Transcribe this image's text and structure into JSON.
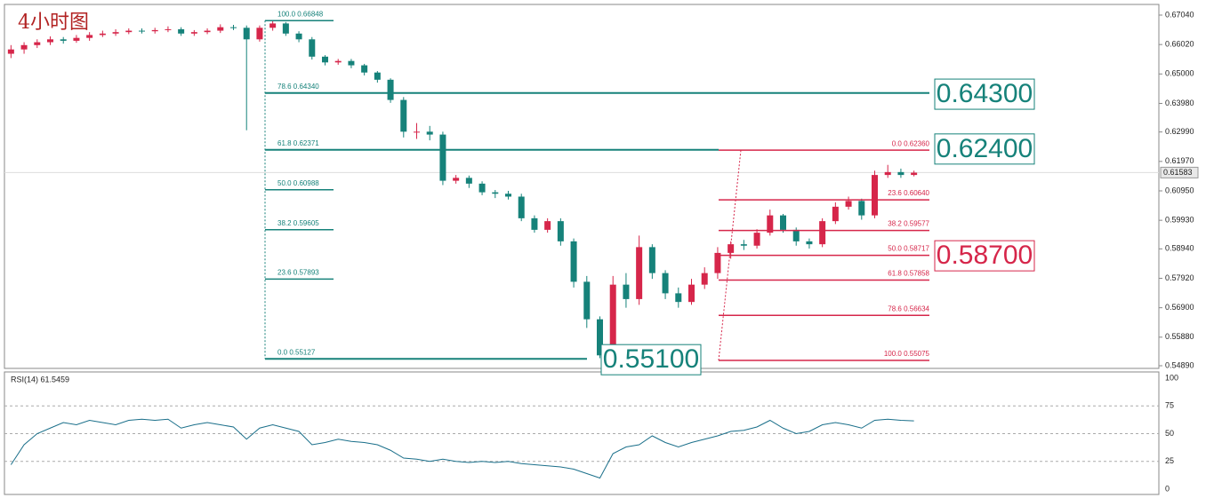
{
  "chart_data": [
    {
      "type": "candlestick",
      "title": "4小时图",
      "open": [
        0.657,
        0.6585,
        0.66,
        0.661,
        0.662,
        0.6615,
        0.6625,
        0.6635,
        0.664,
        0.6645,
        0.665,
        0.6648,
        0.6652,
        0.6655,
        0.664,
        0.6645,
        0.665,
        0.6662,
        0.666,
        0.662,
        0.666,
        0.6675,
        0.664,
        0.662,
        0.656,
        0.654,
        0.6545,
        0.653,
        0.6505,
        0.648,
        0.641,
        0.63,
        0.63,
        0.629,
        0.613,
        0.614,
        0.612,
        0.609,
        0.6085,
        0.6075,
        0.6,
        0.596,
        0.599,
        0.592,
        0.578,
        0.565,
        0.5525,
        0.577,
        0.572,
        0.59,
        0.581,
        0.574,
        0.571,
        0.577,
        0.581,
        0.588,
        0.591,
        0.5905,
        0.595,
        0.601,
        0.596,
        0.592,
        0.591,
        0.599,
        0.604,
        0.606,
        0.601,
        0.615,
        0.616,
        0.615
      ],
      "high": [
        0.66,
        0.661,
        0.662,
        0.663,
        0.6628,
        0.6635,
        0.6645,
        0.665,
        0.6655,
        0.6658,
        0.6658,
        0.666,
        0.6665,
        0.6662,
        0.6652,
        0.6658,
        0.6672,
        0.667,
        0.6668,
        0.6668,
        0.6685,
        0.668,
        0.6648,
        0.6628,
        0.6565,
        0.6552,
        0.6552,
        0.6535,
        0.651,
        0.6485,
        0.642,
        0.633,
        0.632,
        0.63,
        0.615,
        0.6148,
        0.6128,
        0.6098,
        0.6095,
        0.6085,
        0.601,
        0.6,
        0.6,
        0.593,
        0.58,
        0.566,
        0.58,
        0.581,
        0.594,
        0.591,
        0.582,
        0.576,
        0.579,
        0.583,
        0.59,
        0.592,
        0.5925,
        0.5962,
        0.603,
        0.6015,
        0.5968,
        0.593,
        0.6,
        0.6055,
        0.6075,
        0.6068,
        0.6165,
        0.6185,
        0.6172,
        0.6165
      ],
      "low": [
        0.6555,
        0.657,
        0.659,
        0.66,
        0.6605,
        0.6608,
        0.6615,
        0.6628,
        0.6632,
        0.6638,
        0.664,
        0.664,
        0.6645,
        0.6632,
        0.6632,
        0.6638,
        0.6642,
        0.6652,
        0.6305,
        0.6612,
        0.665,
        0.6632,
        0.661,
        0.655,
        0.653,
        0.6532,
        0.652,
        0.6495,
        0.647,
        0.64,
        0.628,
        0.6275,
        0.627,
        0.6115,
        0.612,
        0.6105,
        0.608,
        0.607,
        0.6065,
        0.599,
        0.595,
        0.595,
        0.5905,
        0.576,
        0.562,
        0.5515,
        0.5515,
        0.569,
        0.57,
        0.579,
        0.572,
        0.569,
        0.57,
        0.5755,
        0.579,
        0.586,
        0.589,
        0.5895,
        0.594,
        0.595,
        0.5905,
        0.5895,
        0.59,
        0.598,
        0.603,
        0.5995,
        0.6,
        0.614,
        0.614,
        0.6145
      ],
      "close": [
        0.6585,
        0.66,
        0.661,
        0.662,
        0.6615,
        0.6625,
        0.6635,
        0.664,
        0.6645,
        0.665,
        0.6648,
        0.6652,
        0.6655,
        0.664,
        0.6645,
        0.665,
        0.6662,
        0.666,
        0.662,
        0.666,
        0.6675,
        0.664,
        0.662,
        0.656,
        0.654,
        0.6545,
        0.653,
        0.6505,
        0.648,
        0.641,
        0.63,
        0.63,
        0.629,
        0.613,
        0.614,
        0.612,
        0.609,
        0.6085,
        0.6075,
        0.6,
        0.596,
        0.599,
        0.592,
        0.578,
        0.565,
        0.5525,
        0.577,
        0.572,
        0.59,
        0.581,
        0.574,
        0.571,
        0.577,
        0.581,
        0.588,
        0.591,
        0.5905,
        0.595,
        0.601,
        0.596,
        0.592,
        0.591,
        0.599,
        0.604,
        0.606,
        0.601,
        0.615,
        0.616,
        0.615,
        0.6158
      ],
      "up_color": "#d6264a",
      "down_color": "#16827a",
      "ylim": [
        0.54798,
        0.67409
      ],
      "yticks": [
        {
          "value": 0.6704,
          "label": "0.67040"
        },
        {
          "value": 0.6602,
          "label": "0.66020"
        },
        {
          "value": 0.65,
          "label": "0.65000"
        },
        {
          "value": 0.6398,
          "label": "0.63980"
        },
        {
          "value": 0.6299,
          "label": "0.62990"
        },
        {
          "value": 0.6197,
          "label": "0.61970"
        },
        {
          "value": 0.6095,
          "label": "0.60950"
        },
        {
          "value": 0.5993,
          "label": "0.59930"
        },
        {
          "value": 0.5894,
          "label": "0.58940"
        },
        {
          "value": 0.5792,
          "label": "0.57920"
        },
        {
          "value": 0.569,
          "label": "0.56900"
        },
        {
          "value": 0.5588,
          "label": "0.55880"
        },
        {
          "value": 0.5489,
          "label": "0.54890"
        }
      ],
      "current_price": {
        "value": 0.61583,
        "label": "0.61583"
      },
      "fib_down": {
        "color": "#16827a",
        "levels": [
          {
            "value": 0.66848,
            "label": "100.0  0.66848"
          },
          {
            "value": 0.6434,
            "label": "78.6  0.64340"
          },
          {
            "value": 0.62371,
            "label": "61.8  0.62371"
          },
          {
            "value": 0.60988,
            "label": "50.0  0.60988"
          },
          {
            "value": 0.59605,
            "label": "38.2  0.59605"
          },
          {
            "value": 0.57893,
            "label": "23.6  0.57893"
          },
          {
            "value": 0.55127,
            "label": "0.0  0.55127"
          }
        ]
      },
      "fib_up": {
        "color": "#d6264a",
        "levels": [
          {
            "value": 0.6236,
            "label": "0.0  0.62360"
          },
          {
            "value": 0.6064,
            "label": "23.6  0.60640"
          },
          {
            "value": 0.59577,
            "label": "38.2  0.59577"
          },
          {
            "value": 0.58717,
            "label": "50.0  0.58717"
          },
          {
            "value": 0.57858,
            "label": "61.8  0.57858"
          },
          {
            "value": 0.56634,
            "label": "78.6  0.56634"
          },
          {
            "value": 0.55075,
            "label": "100.0  0.55075"
          }
        ]
      },
      "callouts": [
        {
          "value": 0.643,
          "label": "0.64300",
          "color": "#16827a"
        },
        {
          "value": 0.624,
          "label": "0.62400",
          "color": "#16827a"
        },
        {
          "value": 0.587,
          "label": "0.58700",
          "color": "#d6264a"
        },
        {
          "value": 0.551,
          "label": "0.55100",
          "color": "#16827a"
        }
      ]
    },
    {
      "type": "line",
      "title": "RSI(14) 61.5459",
      "color": "#1a6f8a",
      "values": [
        22,
        40,
        50,
        55,
        60,
        58,
        62,
        60,
        58,
        62,
        63,
        62,
        63,
        55,
        58,
        60,
        58,
        56,
        45,
        55,
        58,
        55,
        52,
        40,
        42,
        45,
        43,
        42,
        40,
        35,
        28,
        27,
        25,
        27,
        25,
        24,
        25,
        24,
        25,
        23,
        22,
        21,
        20,
        18,
        14,
        10,
        32,
        38,
        40,
        48,
        42,
        38,
        42,
        45,
        48,
        52,
        53,
        56,
        62,
        55,
        50,
        52,
        58,
        60,
        58,
        55,
        62,
        63,
        62,
        61.5
      ],
      "ylim": [
        0,
        100
      ],
      "yticks": [
        0,
        25,
        50,
        75,
        100
      ]
    }
  ]
}
